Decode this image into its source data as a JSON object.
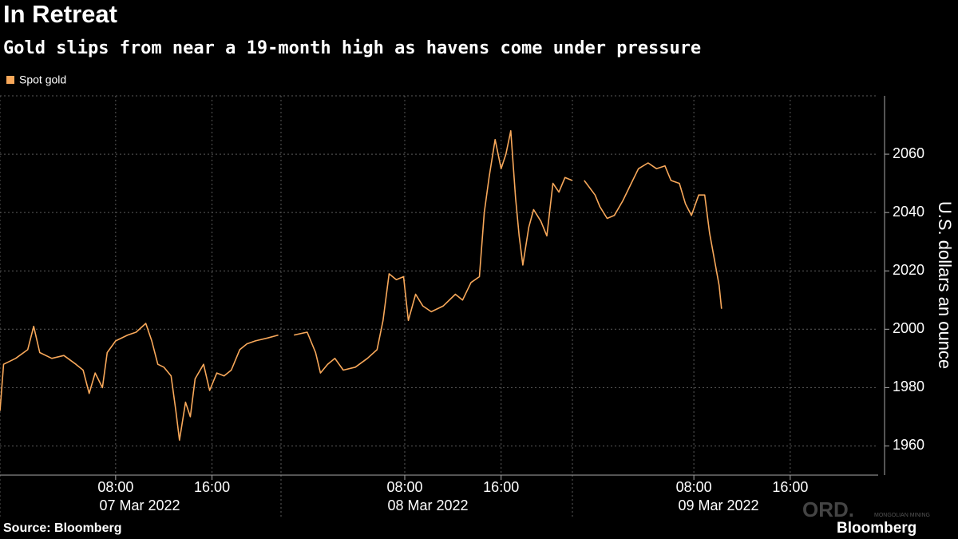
{
  "chart_data": {
    "type": "line",
    "title": "In Retreat",
    "subtitle": "Gold slips from near a 19-month high as havens come under pressure",
    "y_axis_label": "U.S. dollars an ounce",
    "source": "Source: Bloomberg",
    "brand": "Bloomberg",
    "watermark": [
      "ORD.",
      "MONGOLIAN MINING"
    ],
    "x_groups": [
      "07 Mar 2022",
      "08 Mar 2022",
      "09 Mar 2022"
    ],
    "x": [
      -1.6,
      -1.3,
      -0.3,
      0.7,
      1.2,
      1.7,
      2.7,
      3.7,
      4.7,
      5.3,
      5.8,
      6.3,
      6.9,
      7.3,
      8.0,
      9.0,
      9.7,
      10.5,
      11.0,
      11.5,
      12.0,
      12.6,
      13.0,
      13.3,
      13.8,
      14.2,
      14.6,
      15.3,
      15.8,
      16.4,
      17.0,
      17.6,
      18.3,
      18.9,
      19.6,
      20.6,
      21.5,
      22.0,
      22.8,
      23.9,
      24.6,
      25.0,
      25.6,
      26.2,
      26.9,
      27.9,
      28.9,
      29.7,
      30.2,
      30.7,
      31.3,
      31.9,
      32.3,
      32.9,
      33.5,
      34.2,
      35.2,
      36.2,
      36.8,
      37.5,
      38.2,
      38.6,
      39.0,
      39.5,
      40.0,
      40.4,
      40.8,
      41.2,
      41.5,
      41.8,
      42.3,
      42.7,
      43.3,
      43.8,
      44.3,
      44.8,
      45.3,
      45.9,
      46.5,
      46.9,
      47.8,
      48.2,
      48.8,
      49.4,
      50.1,
      50.8,
      51.4,
      52.2,
      52.9,
      53.6,
      54.1,
      54.8,
      55.3,
      55.8,
      56.4,
      56.9,
      57.3,
      57.7,
      58.1,
      58.3
    ],
    "series": [
      {
        "name": "Spot gold",
        "color": "#f8a85a",
        "values": [
          1972,
          1988,
          1990,
          1993,
          2001,
          1992,
          1990,
          1991,
          1988,
          1986,
          1978,
          1985,
          1980,
          1992,
          1996,
          1998,
          1999,
          2002,
          1996,
          1988,
          1987,
          1984,
          1972,
          1962,
          1975,
          1970,
          1983,
          1988,
          1979,
          1985,
          1984,
          1986,
          1993,
          1995,
          1996,
          1997,
          1998,
          null,
          1998,
          1999,
          1992,
          1985,
          1988,
          1990,
          1986,
          1987,
          1990,
          1993,
          2003,
          2019,
          2017,
          2018,
          2003,
          2012,
          2008,
          2006,
          2008,
          2012,
          2010,
          2016,
          2018,
          2040,
          2052,
          2065,
          2055,
          2060,
          2068,
          2045,
          2032,
          2022,
          2035,
          2041,
          2037,
          2032,
          2050,
          2047,
          2052,
          2051,
          null,
          2051,
          2046,
          2042,
          2038,
          2039,
          2044,
          2050,
          2055,
          2057,
          2055,
          2056,
          2051,
          2050,
          2043,
          2039,
          2046,
          2046,
          2033,
          2024,
          2015,
          2007
        ]
      }
    ],
    "xlim": [
      -1.6,
      71.3
    ],
    "xticks": [
      {
        "value": 8,
        "label": "08:00"
      },
      {
        "value": 16,
        "label": "16:00"
      },
      {
        "value": 32,
        "label": "08:00"
      },
      {
        "value": 40,
        "label": "16:00"
      },
      {
        "value": 56,
        "label": "08:00"
      },
      {
        "value": 64,
        "label": "16:00"
      }
    ],
    "ylim": [
      1950,
      2080
    ],
    "yticks": [
      1960,
      1980,
      2000,
      2020,
      2040,
      2060
    ],
    "grid": true
  }
}
